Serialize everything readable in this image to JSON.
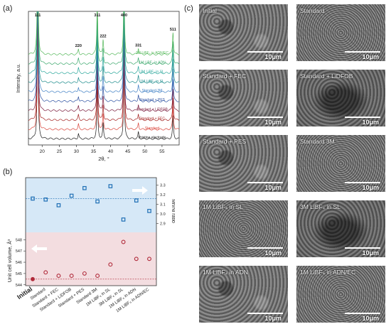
{
  "panel_labels": {
    "a": "(a)",
    "b": "(b)",
    "c": "(c)"
  },
  "chart_data": [
    {
      "type": "line",
      "panel": "a",
      "xlabel": "2θ, °",
      "ylabel": "Intensity, a.u.",
      "xlim": [
        16,
        60
      ],
      "xticks": [
        20,
        25,
        30,
        35,
        40,
        45,
        50,
        55
      ],
      "peaks": [
        {
          "label": "111",
          "x": 18.7,
          "h": 1.0
        },
        {
          "label": "220",
          "x": 30.6,
          "h": 0.04
        },
        {
          "label": "311",
          "x": 36.1,
          "h": 0.42
        },
        {
          "label": "222",
          "x": 37.8,
          "h": 0.12
        },
        {
          "label": "400",
          "x": 43.9,
          "h": 0.6
        },
        {
          "label": "331",
          "x": 48.1,
          "h": 0.05
        },
        {
          "label": "511",
          "x": 58.2,
          "h": 0.18
        }
      ],
      "series": [
        {
          "name": "Pristine electrode",
          "color": "#1a1a1a"
        },
        {
          "name": "Standard",
          "color": "#d9443a"
        },
        {
          "name": "Standard + FEC",
          "color": "#a3201f"
        },
        {
          "name": "Standard + LiDFOB",
          "color": "#7a1a3c"
        },
        {
          "name": "Standard + PES",
          "color": "#2a4fa0"
        },
        {
          "name": "Standard 3M",
          "color": "#3f7fc4"
        },
        {
          "name": "1M LiBF₄ in SL",
          "color": "#1d8c8c"
        },
        {
          "name": "3M LiBF₄ in SL",
          "color": "#2aa79b"
        },
        {
          "name": "1M LiBF₄ in ADN",
          "color": "#3aa86b"
        },
        {
          "name": "1M LiBF₄ in ADN/EC",
          "color": "#55b85a"
        }
      ]
    },
    {
      "type": "scatter",
      "panel": "b",
      "ylabel_left": "Unit cell volume, Å³",
      "ylabel_right": "Mn/Ni ratio",
      "categories": [
        "Initial",
        "Standard",
        "Standard + FEC",
        "Standard + LiDFOB",
        "Standard + PES",
        "Standard 3M",
        "1M LiBF₄ in SL",
        "3M LiBF₄ in SL",
        "1M LiBF₄ in ADN",
        "1M LiBF₄ in ADN/EC"
      ],
      "mnni": {
        "ylim": [
          2.85,
          3.35
        ],
        "ticks": [
          "2.9",
          "3.0",
          "3.1",
          "3.2",
          "3.3"
        ],
        "reference": 3.16,
        "values": [
          3.16,
          3.15,
          3.09,
          3.19,
          3.27,
          3.13,
          3.29,
          2.94,
          3.14,
          3.03
        ],
        "color": "#1f6fb5"
      },
      "volume": {
        "ylim": [
          544.3,
          548.4
        ],
        "ticks": [
          "544",
          "545",
          "546",
          "547",
          "548"
        ],
        "reference": 544.5,
        "values": [
          544.5,
          545.1,
          544.8,
          544.8,
          545.0,
          544.8,
          545.8,
          547.8,
          546.3,
          546.3
        ],
        "color": "#b02a3a"
      }
    }
  ],
  "sem_images": [
    {
      "name": "Initial",
      "scale": "10μm"
    },
    {
      "name": "Standard",
      "scale": "10μm"
    },
    {
      "name": "Standard + FEC",
      "scale": "10μm"
    },
    {
      "name": "Standard + LiDFOB",
      "scale": "10μm"
    },
    {
      "name": "Standard + PES",
      "scale": "10μm"
    },
    {
      "name": "Standard 3M",
      "scale": "10μm"
    },
    {
      "name": "1M LiBF₄ in SL",
      "scale": "10μm"
    },
    {
      "name": "3M LiBF₄ in SL",
      "scale": "10μm"
    },
    {
      "name": "1M LiBF₄ in ADN",
      "scale": "10μm"
    },
    {
      "name": "1M LiBF₄ in ADN/EC",
      "scale": "10μm"
    }
  ]
}
